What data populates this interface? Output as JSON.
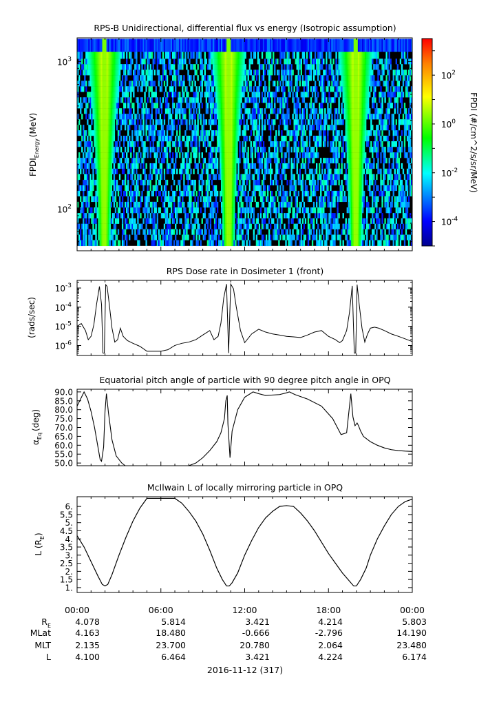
{
  "chart_data": [
    {
      "type": "heatmap",
      "title": "RPS-B  Unidirectional, differential flux vs energy (Isotropic assumption)",
      "ylabel_main": "FPDI",
      "ylabel_sub": "Energy",
      "ylabel_units": "(MeV)",
      "ylim": [
        52,
        1450
      ],
      "yscale": "log",
      "yticks": [
        {
          "value": 100,
          "base": "10",
          "exp": "2"
        },
        {
          "value": 1000,
          "base": "10",
          "exp": "3"
        }
      ],
      "energy_bins": [
        59,
        64,
        70,
        76,
        83,
        90,
        98,
        107,
        117,
        127,
        139,
        151,
        165,
        180,
        196,
        213,
        232,
        253,
        276,
        301,
        328,
        357,
        389,
        424,
        462,
        504,
        549,
        598,
        652,
        711,
        775,
        845,
        921,
        1004,
        1094,
        1250
      ],
      "peak_times_hours": [
        1.95,
        10.85,
        19.95
      ],
      "colorbar": {
        "label": "FPDI (#/cm^2/s/sr/MeV)",
        "min_exp": -5,
        "max_exp": 3.5,
        "ticks": [
          {
            "value": -4,
            "base": "10",
            "exp": "-4"
          },
          {
            "value": -2,
            "base": "10",
            "exp": "-2"
          },
          {
            "value": 0,
            "base": "10",
            "exp": "0"
          },
          {
            "value": 2,
            "base": "10",
            "exp": "2"
          }
        ]
      }
    },
    {
      "type": "line",
      "title": "RPS  Dose rate in Dosimeter 1 (front)",
      "ylabel": "(rads/sec)",
      "yscale": "log",
      "ylim": [
        3e-07,
        0.0025
      ],
      "yticks": [
        {
          "value": 1e-06,
          "base": "10",
          "exp": "-6"
        },
        {
          "value": 1e-05,
          "base": "10",
          "exp": "-5"
        },
        {
          "value": 0.0001,
          "base": "10",
          "exp": "-4"
        },
        {
          "value": 0.001,
          "base": "10",
          "exp": "-3"
        }
      ],
      "series": [
        {
          "values_hours": [
            0.0,
            0.3,
            0.6,
            0.8,
            1.0,
            1.2,
            1.4,
            1.6,
            1.75,
            1.85,
            1.95,
            2.05,
            2.15,
            2.3,
            2.5,
            2.7,
            2.9,
            3.1,
            3.3,
            3.6,
            4.0,
            4.5,
            5.0,
            5.5,
            6.0,
            6.5,
            7.0,
            7.5,
            8.0,
            8.5,
            9.0,
            9.5,
            9.8,
            10.1,
            10.3,
            10.5,
            10.7,
            10.85,
            11.0,
            11.2,
            11.4,
            11.7,
            12.0,
            12.5,
            13.0,
            13.5,
            14.0,
            14.5,
            15.0,
            15.5,
            16.0,
            16.5,
            17.0,
            17.5,
            18.0,
            18.5,
            18.8,
            19.0,
            19.3,
            19.5,
            19.7,
            19.85,
            19.95,
            20.05,
            20.2,
            20.4,
            20.6,
            20.8,
            21.0,
            21.3,
            21.6,
            22.0,
            22.5,
            23.0,
            23.5,
            24.0
          ],
          "values": [
            1e-05,
            1.4e-05,
            6e-06,
            2e-06,
            3e-06,
            1.2e-05,
            0.00015,
            0.0012,
            0.00014,
            4e-07,
            4e-07,
            0.0015,
            0.0012,
            0.00015,
            8e-06,
            1.5e-06,
            2e-06,
            8e-06,
            3e-06,
            1.8e-06,
            1.3e-06,
            9e-07,
            5e-07,
            5e-07,
            5e-07,
            6e-07,
            1e-06,
            1.3e-06,
            1.5e-06,
            2e-06,
            3.5e-06,
            6e-06,
            2e-06,
            3e-06,
            1.5e-05,
            0.0003,
            0.0016,
            4e-07,
            0.0016,
            0.0009,
            0.0001,
            6e-06,
            1.4e-06,
            4e-06,
            7e-06,
            5e-06,
            4e-06,
            3.5e-06,
            3e-06,
            2.8e-06,
            2.6e-06,
            3.5e-06,
            5e-06,
            6e-06,
            3e-06,
            2e-06,
            1.4e-06,
            1.8e-06,
            6e-06,
            5e-05,
            0.0013,
            4e-07,
            4e-07,
            0.0015,
            0.00014,
            8e-06,
            1.5e-06,
            4e-06,
            8e-06,
            9e-06,
            8e-06,
            6e-06,
            4e-06,
            3e-06,
            2.2e-06,
            1.6e-06
          ]
        }
      ]
    },
    {
      "type": "line",
      "title": "Equatorial pitch angle of particle with 90 degree pitch angle in OPQ",
      "ylabel": "(deg)",
      "ylabel_symbol": "α",
      "ylabel_sub": "Eq",
      "ylim": [
        48.5,
        91.5
      ],
      "yticks": [
        50,
        55,
        60,
        65,
        70,
        75,
        80,
        85,
        90
      ],
      "series": [
        {
          "values_hours": [
            0.0,
            0.25,
            0.5,
            0.75,
            1.0,
            1.25,
            1.45,
            1.65,
            1.75,
            1.9,
            2.0,
            2.1,
            2.25,
            2.5,
            2.8,
            3.2,
            3.45,
            4.5,
            6.0,
            7.5,
            8.0,
            8.5,
            9.0,
            9.5,
            10.0,
            10.3,
            10.55,
            10.65,
            10.75,
            10.8,
            10.95,
            11.1,
            11.5,
            12.0,
            12.6,
            13.0,
            13.5,
            14.5,
            15.0,
            15.2,
            15.6,
            16.5,
            17.5,
            18.3,
            18.9,
            19.3,
            19.6,
            19.75,
            19.9,
            20.05,
            20.15,
            20.3,
            20.5,
            21.0,
            21.5,
            22.0,
            22.5,
            23.0,
            23.5,
            24.0
          ],
          "values": [
            82,
            86,
            90,
            86,
            79,
            70,
            61,
            52,
            51,
            59,
            79,
            89,
            78,
            63,
            54,
            50,
            48.5,
            48.5,
            48.5,
            48.5,
            48.5,
            50,
            53,
            57,
            62,
            67,
            75,
            85,
            88,
            72,
            53,
            68,
            80,
            87,
            90,
            89,
            88,
            88.5,
            89.5,
            90,
            88.5,
            86,
            82,
            75,
            66,
            67,
            89,
            76,
            71,
            72.5,
            71,
            68,
            65,
            62,
            60,
            58.5,
            57.5,
            57,
            56.7,
            56.5
          ]
        }
      ]
    },
    {
      "type": "line",
      "title": "McIlwain L of locally mirroring particle in OPQ",
      "ylabel": "L (R",
      "ylabel_sub": "E",
      "ylabel_close": ")",
      "ylim": [
        0.7,
        6.6
      ],
      "yticks": [
        1,
        1.5,
        2,
        2.5,
        3,
        3.5,
        4,
        4.5,
        5,
        5.5,
        6
      ],
      "series": [
        {
          "values_hours": [
            0.0,
            0.5,
            1.0,
            1.5,
            1.8,
            2.0,
            2.2,
            2.5,
            3.0,
            3.5,
            4.0,
            4.5,
            5.0,
            6.0,
            7.0,
            7.5,
            8.0,
            8.5,
            9.0,
            9.5,
            10.0,
            10.4,
            10.7,
            10.9,
            11.1,
            11.5,
            12.0,
            12.5,
            13.0,
            13.5,
            14.0,
            14.5,
            15.0,
            15.5,
            16.0,
            16.5,
            17.0,
            17.5,
            18.0,
            18.5,
            19.0,
            19.5,
            19.8,
            20.0,
            20.3,
            20.7,
            21.0,
            21.5,
            22.0,
            22.5,
            23.0,
            23.5,
            24.0
          ],
          "values": [
            4.2,
            3.5,
            2.6,
            1.7,
            1.2,
            1.1,
            1.2,
            1.8,
            3.0,
            4.1,
            5.1,
            5.9,
            6.5,
            6.5,
            6.5,
            6.2,
            5.7,
            5.1,
            4.3,
            3.3,
            2.2,
            1.5,
            1.1,
            1.1,
            1.3,
            1.9,
            3.0,
            3.9,
            4.7,
            5.3,
            5.7,
            6.0,
            6.05,
            6.0,
            5.6,
            5.1,
            4.5,
            3.8,
            3.1,
            2.5,
            1.9,
            1.4,
            1.1,
            1.1,
            1.5,
            2.2,
            3.0,
            4.0,
            4.8,
            5.5,
            6.0,
            6.3,
            6.45
          ]
        }
      ]
    }
  ],
  "xaxis": {
    "ticks": [
      {
        "hours": 0,
        "label": "00:00"
      },
      {
        "hours": 6,
        "label": "06:00"
      },
      {
        "hours": 12,
        "label": "12:00"
      },
      {
        "hours": 18,
        "label": "18:00"
      },
      {
        "hours": 24,
        "label": "00:00"
      }
    ],
    "date_label": "2016-11-12 (317)"
  },
  "ephemeris": [
    {
      "label": "R",
      "sub": "E",
      "values": [
        "4.078",
        "5.814",
        "3.421",
        "4.214",
        "5.803"
      ]
    },
    {
      "label": "MLat",
      "sub": "",
      "values": [
        "4.163",
        "18.480",
        "-0.666",
        "-2.796",
        "14.190"
      ]
    },
    {
      "label": "MLT",
      "sub": "",
      "values": [
        "2.135",
        "23.700",
        "20.780",
        "2.064",
        "23.480"
      ]
    },
    {
      "label": "L",
      "sub": "",
      "values": [
        "4.100",
        "6.464",
        "3.421",
        "4.224",
        "6.174"
      ]
    }
  ]
}
